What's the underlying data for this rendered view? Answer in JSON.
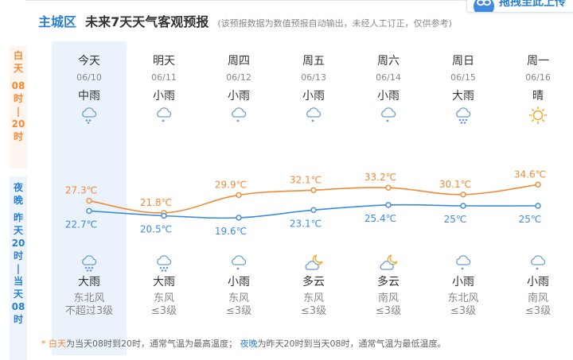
{
  "header": {
    "region": "主城区",
    "title": "未来7天天气客观预报",
    "note": "(该预报数据为数值预报自动输出，未经人工订正，仅供参考)"
  },
  "top_button": {
    "label": "拖拽至此上传"
  },
  "side": {
    "day": [
      "白",
      "天",
      "",
      "08",
      "时",
      "|",
      "20",
      "时"
    ],
    "night": [
      "夜",
      "晚",
      "",
      "昨",
      "天",
      "20",
      "时",
      "|",
      "当",
      "天",
      "08",
      "时"
    ]
  },
  "days": [
    {
      "name": "今天",
      "date": "06/10",
      "day_weather": "中雨",
      "day_icon": "rain-icon",
      "night_weather": "大雨",
      "night_icon": "heavy-rain-icon",
      "wind_dir": "东北风",
      "wind_level": "不超过3级"
    },
    {
      "name": "明天",
      "date": "06/11",
      "day_weather": "小雨",
      "day_icon": "light-rain-icon",
      "night_weather": "大雨",
      "night_icon": "heavy-rain-icon",
      "wind_dir": "东风",
      "wind_level": "≤3级"
    },
    {
      "name": "周四",
      "date": "06/12",
      "day_weather": "小雨",
      "day_icon": "light-rain-icon",
      "night_weather": "小雨",
      "night_icon": "light-rain-icon",
      "wind_dir": "东风",
      "wind_level": "≤3级"
    },
    {
      "name": "周五",
      "date": "06/13",
      "day_weather": "小雨",
      "day_icon": "light-rain-icon",
      "night_weather": "多云",
      "night_icon": "cloudy-night-icon",
      "wind_dir": "东风",
      "wind_level": "≤3级"
    },
    {
      "name": "周六",
      "date": "06/14",
      "day_weather": "小雨",
      "day_icon": "light-rain-icon",
      "night_weather": "多云",
      "night_icon": "cloudy-night-icon",
      "wind_dir": "南风",
      "wind_level": "≤3级"
    },
    {
      "name": "周日",
      "date": "06/15",
      "day_weather": "大雨",
      "day_icon": "heavy-rain-icon",
      "night_weather": "小雨",
      "night_icon": "light-rain-icon",
      "wind_dir": "东北风",
      "wind_level": "≤3级"
    },
    {
      "name": "周一",
      "date": "06/16",
      "day_weather": "晴",
      "day_icon": "sunny-icon",
      "night_weather": "小雨",
      "night_icon": "light-rain-icon",
      "wind_dir": "南风",
      "wind_level": "≤3级"
    }
  ],
  "chart_data": {
    "type": "line",
    "categories": [
      "06/10",
      "06/11",
      "06/12",
      "06/13",
      "06/14",
      "06/15",
      "06/16"
    ],
    "series": [
      {
        "name": "白天",
        "values": [
          27.3,
          21.8,
          29.9,
          32.1,
          33.2,
          30.1,
          34.6
        ],
        "labels": [
          "27.3℃",
          "21.8℃",
          "29.9℃",
          "32.1℃",
          "33.2℃",
          "30.1℃",
          "34.6℃"
        ],
        "color": "#f08a35"
      },
      {
        "name": "夜晚",
        "values": [
          22.7,
          20.5,
          19.6,
          23.1,
          25.4,
          25,
          25
        ],
        "labels": [
          "22.7℃",
          "20.5℃",
          "19.6℃",
          "23.1℃",
          "25.4℃",
          "25℃",
          "25℃"
        ],
        "color": "#3d8be0"
      }
    ]
  },
  "footnote": {
    "star": "*",
    "day_word": "白天",
    "day_text": "为当天08时到20时，通常气温为最高温度；",
    "night_word": "夜晚",
    "night_text": "为昨天20时到当天08时，通常气温为最低温度。"
  },
  "colors": {
    "day": "#f08a35",
    "night": "#2b7fd3",
    "icon": "#6a9ccf",
    "sun": "#f5a623"
  }
}
